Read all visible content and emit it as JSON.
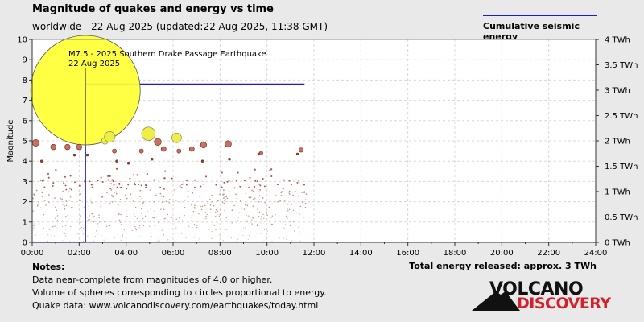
{
  "header": {
    "title": "Magnitude of quakes and energy vs time",
    "subtitle": "worldwide - 22 Aug 2025 (updated:22 Aug 2025, 11:38 GMT)"
  },
  "legend": {
    "label": "Cumulative seismic energy",
    "color": "#1a1ad0"
  },
  "notes": {
    "heading": "Notes:",
    "lines": [
      "Data near-complete from magnitudes of 4.0 or higher.",
      "Volume of spheres corresponding to circles proportional to energy.",
      "Quake data: www.volcanodiscovery.com/earthquakes/today.html"
    ]
  },
  "total_energy": "Total energy released: approx. 3 TWh",
  "logo": {
    "line1": "VOLCANO",
    "line2": "DISCOVERY"
  },
  "chart_data": {
    "type": "scatter",
    "title": "Magnitude of quakes and energy vs time",
    "xlabel": "",
    "ylabel": "Magnitude",
    "y2label": "TWh",
    "xlim": [
      0,
      24
    ],
    "ylim": [
      0,
      10
    ],
    "y2lim": [
      0,
      4
    ],
    "x_ticks": [
      "00:00",
      "02:00",
      "04:00",
      "06:00",
      "08:00",
      "10:00",
      "12:00",
      "14:00",
      "16:00",
      "18:00",
      "20:00",
      "22:00",
      "24:00"
    ],
    "y_ticks": [
      "0",
      "1",
      "2",
      "3",
      "4",
      "5",
      "6",
      "7",
      "8",
      "9",
      "10"
    ],
    "y2_ticks": [
      "0 TWh",
      "0.5 TWh",
      "1 TWh",
      "1.5 TWh",
      "2 TWh",
      "2.5 TWh",
      "3 TWh",
      "3.5 TWh",
      "4 TWh"
    ],
    "colors": {
      "major": "#ffff33",
      "moderate": "#eeee44",
      "medium": "#c87060",
      "small": "#a04030",
      "energy": "#1a1ad0"
    },
    "annotation": {
      "line1": "M7.5 - 2025 Southern Drake Passage Earthquake",
      "line2": "22 Aug 2025",
      "time_h": 2.27,
      "magnitude": 7.5
    },
    "quakes": [
      {
        "t": 2.27,
        "m": 7.5
      },
      {
        "t": 3.1,
        "m": 5.0
      },
      {
        "t": 3.3,
        "m": 5.2
      },
      {
        "t": 4.95,
        "m": 5.35
      },
      {
        "t": 5.35,
        "m": 4.95
      },
      {
        "t": 6.15,
        "m": 5.15
      },
      {
        "t": 0.15,
        "m": 4.9
      },
      {
        "t": 0.9,
        "m": 4.7
      },
      {
        "t": 1.5,
        "m": 4.7
      },
      {
        "t": 2.0,
        "m": 4.7
      },
      {
        "t": 3.5,
        "m": 4.5
      },
      {
        "t": 4.65,
        "m": 4.5
      },
      {
        "t": 5.6,
        "m": 4.6
      },
      {
        "t": 6.25,
        "m": 4.5
      },
      {
        "t": 6.8,
        "m": 4.6
      },
      {
        "t": 7.3,
        "m": 4.8
      },
      {
        "t": 8.35,
        "m": 4.85
      },
      {
        "t": 9.65,
        "m": 4.35
      },
      {
        "t": 9.75,
        "m": 4.4
      },
      {
        "t": 11.45,
        "m": 4.55
      },
      {
        "t": 11.3,
        "m": 4.35
      },
      {
        "t": 1.8,
        "m": 4.3
      },
      {
        "t": 2.35,
        "m": 4.3
      },
      {
        "t": 0.4,
        "m": 4.0
      },
      {
        "t": 3.6,
        "m": 4.0
      },
      {
        "t": 4.1,
        "m": 3.9
      },
      {
        "t": 8.4,
        "m": 4.1
      },
      {
        "t": 5.1,
        "m": 4.1
      },
      {
        "t": 7.25,
        "m": 4.0
      }
    ],
    "energy_steps": [
      {
        "t": 0.0,
        "e": 0.0
      },
      {
        "t": 2.27,
        "e": 0.0
      },
      {
        "t": 2.27,
        "e": 3.12
      },
      {
        "t": 11.6,
        "e": 3.12
      }
    ]
  }
}
